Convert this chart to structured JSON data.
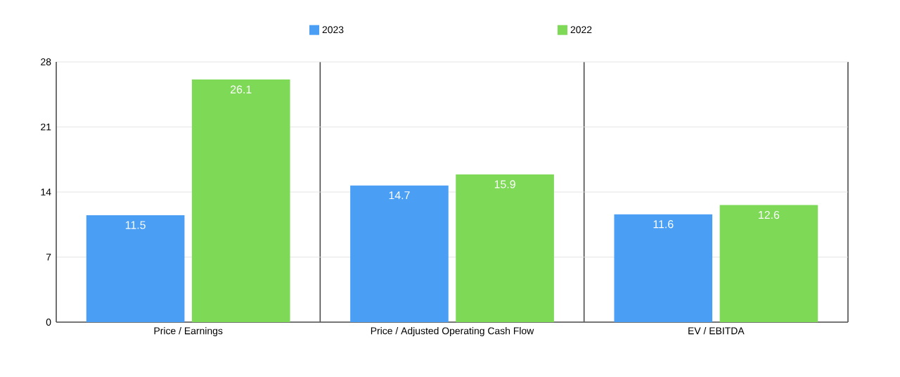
{
  "chart_data": {
    "type": "bar",
    "categories": [
      "Price / Earnings",
      "Price / Adjusted Operating Cash Flow",
      "EV / EBITDA"
    ],
    "series": [
      {
        "name": "2023",
        "color": "#4a9ff5",
        "values": [
          11.5,
          14.7,
          11.6
        ]
      },
      {
        "name": "2022",
        "color": "#7ed957",
        "values": [
          26.1,
          15.9,
          12.6
        ]
      }
    ],
    "ylim": [
      0,
      28
    ],
    "yticks": [
      0,
      7,
      14,
      21,
      28
    ],
    "grid": true,
    "legend": "top",
    "data_labels": true
  }
}
